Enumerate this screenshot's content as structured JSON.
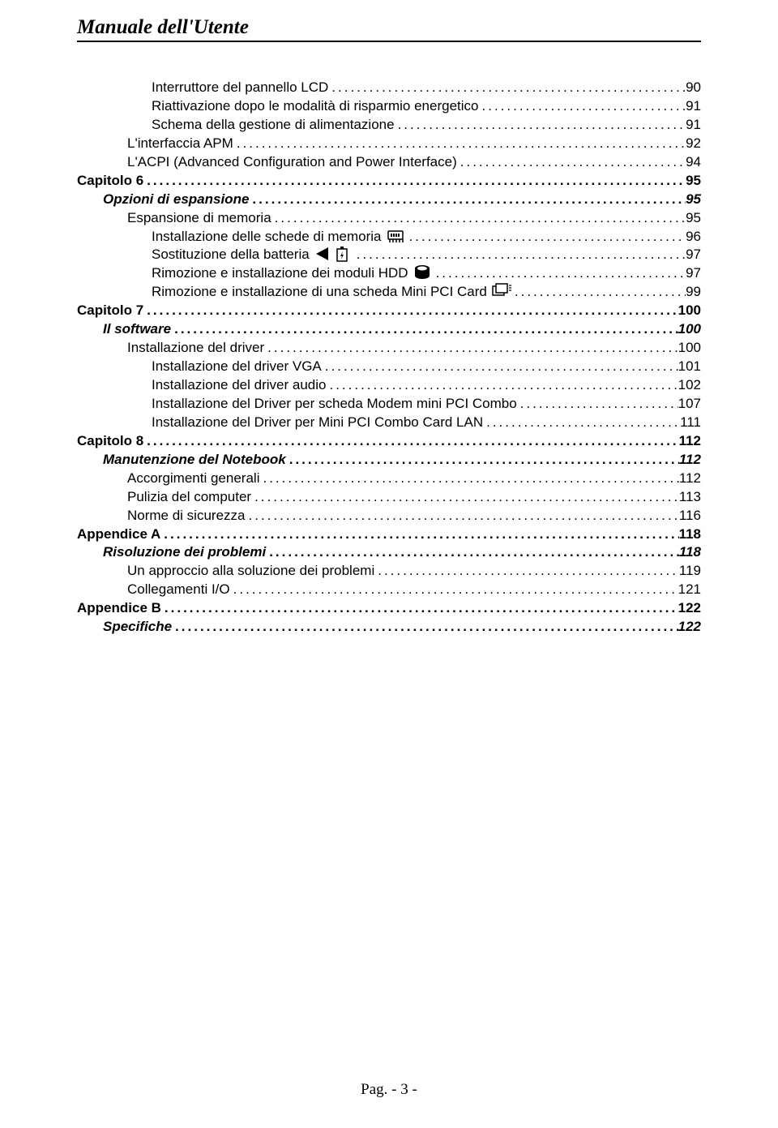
{
  "header": "Manuale dell'Utente",
  "footer": {
    "prefix": "Pag.",
    "num": " - 3 -"
  },
  "toc": [
    {
      "level": 3,
      "label": "Interruttore del pannello LCD",
      "page": "90",
      "icons": []
    },
    {
      "level": 3,
      "label": "Riattivazione dopo le modalità di risparmio energetico",
      "page": "91",
      "icons": []
    },
    {
      "level": 3,
      "label": "Schema della gestione di alimentazione",
      "page": "91",
      "icons": []
    },
    {
      "level": 2,
      "label": "L'interfaccia APM",
      "page": "92",
      "icons": []
    },
    {
      "level": 2,
      "label": "L'ACPI (Advanced Configuration and Power Interface)",
      "page": "94",
      "icons": []
    },
    {
      "level": 0,
      "label": "Capitolo 6",
      "page": "95",
      "icons": []
    },
    {
      "level": 1,
      "label": "Opzioni di espansione",
      "page": "95",
      "icons": []
    },
    {
      "level": 2,
      "label": "Espansione di memoria",
      "page": "95",
      "icons": []
    },
    {
      "level": 3,
      "label": "Installazione delle schede di memoria",
      "page": "96",
      "icons": [
        "memory"
      ]
    },
    {
      "level": 3,
      "label": "Sostituzione della batteria",
      "page": "97",
      "icons": [
        "triangle",
        "battery"
      ]
    },
    {
      "level": 3,
      "label": "Rimozione e installazione dei moduli HDD",
      "page": "97",
      "icons": [
        "hdd"
      ]
    },
    {
      "level": 3,
      "label": "Rimozione e installazione di una scheda Mini PCI Card",
      "page": "99",
      "icons": [
        "pci"
      ]
    },
    {
      "level": 0,
      "label": "Capitolo 7",
      "page": "100",
      "icons": []
    },
    {
      "level": 1,
      "label": "Il software",
      "page": "100",
      "icons": []
    },
    {
      "level": 2,
      "label": "Installazione del driver",
      "page": "100",
      "icons": []
    },
    {
      "level": 3,
      "label": "Installazione del driver VGA",
      "page": "101",
      "icons": []
    },
    {
      "level": 3,
      "label": "Installazione del driver audio",
      "page": "102",
      "icons": []
    },
    {
      "level": 3,
      "label": "Installazione del Driver per scheda Modem mini PCI Combo",
      "page": "107",
      "icons": []
    },
    {
      "level": 3,
      "label": "Installazione del Driver per Mini PCI Combo Card LAN",
      "page": "111",
      "icons": []
    },
    {
      "level": 0,
      "label": "Capitolo 8",
      "page": "112",
      "icons": []
    },
    {
      "level": 1,
      "label": "Manutenzione del Notebook",
      "page": "112",
      "icons": []
    },
    {
      "level": 2,
      "label": "Accorgimenti generali",
      "page": "112",
      "icons": []
    },
    {
      "level": 2,
      "label": "Pulizia del computer",
      "page": "113",
      "icons": []
    },
    {
      "level": 2,
      "label": "Norme di sicurezza",
      "page": "116",
      "icons": []
    },
    {
      "level": 0,
      "label": "Appendice A",
      "page": "118",
      "icons": []
    },
    {
      "level": 1,
      "label": "Risoluzione dei problemi",
      "page": "118",
      "icons": []
    },
    {
      "level": 2,
      "label": "Un approccio alla soluzione dei problemi",
      "page": "119",
      "icons": []
    },
    {
      "level": 2,
      "label": "Collegamenti I/O",
      "page": "121",
      "icons": []
    },
    {
      "level": 0,
      "label": "Appendice B",
      "page": "122",
      "icons": []
    },
    {
      "level": 1,
      "label": "Specifiche",
      "page": "122",
      "icons": []
    }
  ]
}
